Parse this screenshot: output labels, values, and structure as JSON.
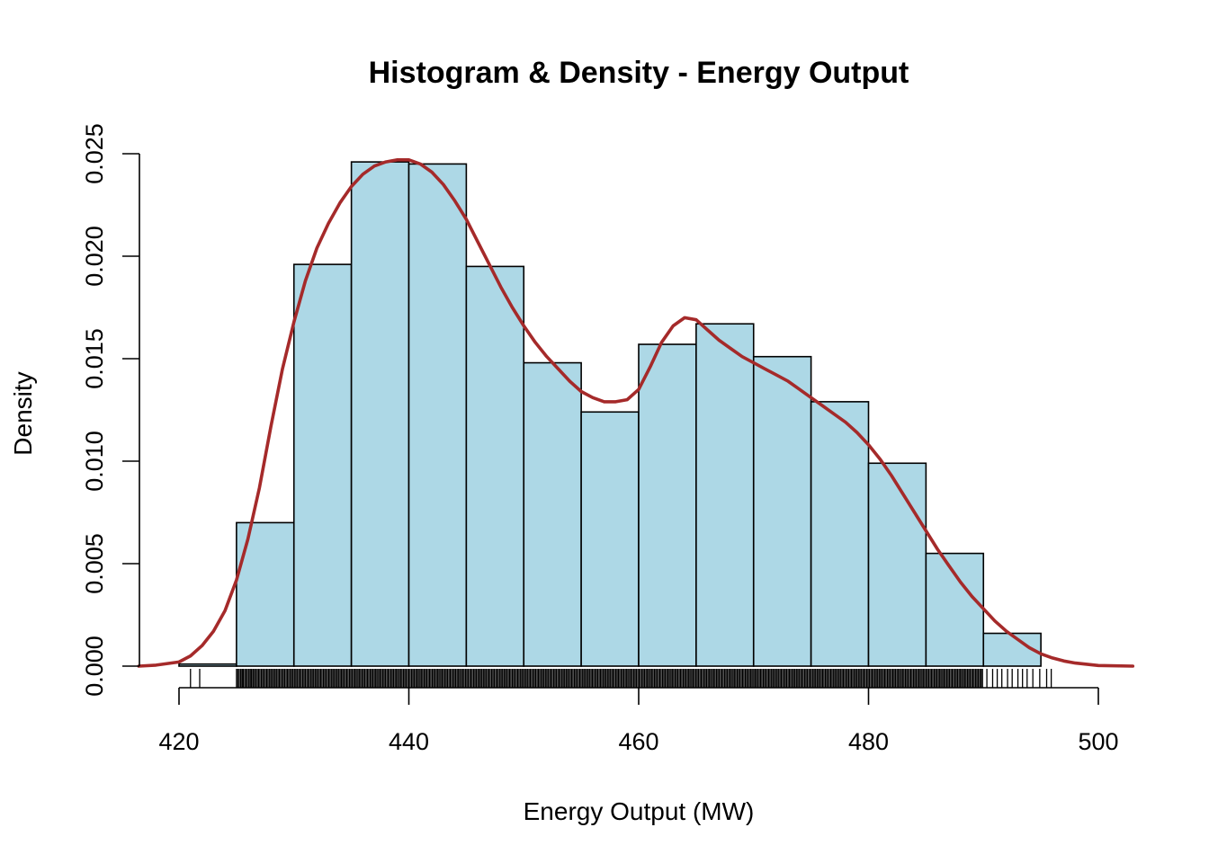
{
  "chart_data": {
    "type": "bar",
    "title": "Histogram & Density - Energy Output",
    "xlabel": "Energy Output (MW)",
    "ylabel": "Density",
    "xlim": [
      420,
      500
    ],
    "ylim": [
      0,
      0.025
    ],
    "x_ticks": [
      "420",
      "440",
      "460",
      "480",
      "500"
    ],
    "y_ticks": [
      "0.000",
      "0.005",
      "0.010",
      "0.015",
      "0.020",
      "0.025"
    ],
    "grid": false,
    "legend": "none",
    "bin_edges": [
      420,
      425,
      430,
      435,
      440,
      445,
      450,
      455,
      460,
      465,
      470,
      475,
      480,
      485,
      490,
      495,
      500
    ],
    "values": [
      0.0001,
      0.007,
      0.0196,
      0.0246,
      0.0245,
      0.0195,
      0.0148,
      0.0124,
      0.0157,
      0.0167,
      0.0151,
      0.0129,
      0.0099,
      0.0055,
      0.0016,
      0.0
    ],
    "density_curve": {
      "x": [
        416.5,
        418,
        420,
        421,
        422,
        423,
        424,
        425,
        426,
        427,
        428,
        429,
        430,
        431,
        432,
        433,
        434,
        435,
        436,
        437,
        438,
        439,
        440,
        441,
        442,
        443,
        444,
        445,
        446,
        447,
        448,
        449,
        450,
        451,
        452,
        453,
        454,
        455,
        456,
        457,
        458,
        459,
        460,
        461,
        462,
        463,
        464,
        465,
        466,
        467,
        468,
        469,
        470,
        471,
        472,
        473,
        474,
        475,
        476,
        477,
        478,
        479,
        480,
        481,
        482,
        483,
        484,
        485,
        486,
        487,
        488,
        489,
        490,
        491,
        492,
        493,
        494,
        495,
        496,
        497,
        498,
        500,
        503
      ],
      "y": [
        0.0,
        5e-05,
        0.0002,
        0.0005,
        0.001,
        0.0017,
        0.0027,
        0.0042,
        0.0062,
        0.0087,
        0.0117,
        0.0145,
        0.0168,
        0.0188,
        0.0204,
        0.0216,
        0.0226,
        0.0234,
        0.024,
        0.0244,
        0.0246,
        0.0247,
        0.0247,
        0.0245,
        0.0241,
        0.0235,
        0.0227,
        0.0218,
        0.0207,
        0.0196,
        0.0185,
        0.0175,
        0.0166,
        0.0158,
        0.0151,
        0.0145,
        0.0139,
        0.0134,
        0.0131,
        0.0129,
        0.0129,
        0.013,
        0.0135,
        0.0146,
        0.0158,
        0.0166,
        0.017,
        0.0169,
        0.0164,
        0.0159,
        0.0155,
        0.0151,
        0.0148,
        0.0145,
        0.0142,
        0.0139,
        0.0135,
        0.0131,
        0.0127,
        0.0123,
        0.0119,
        0.0114,
        0.0108,
        0.0101,
        0.0093,
        0.0084,
        0.0075,
        0.0066,
        0.0057,
        0.0049,
        0.0041,
        0.0034,
        0.0028,
        0.0022,
        0.0017,
        0.0013,
        0.0009,
        0.0006,
        0.0004,
        0.00025,
        0.00015,
        3e-05,
        0.0
      ]
    },
    "rug": {
      "dense_range": [
        425,
        490
      ],
      "sparse": [
        421,
        421.8,
        425.5,
        426.3,
        490.3,
        490.8,
        491.2,
        491.6,
        492.1,
        492.5,
        493.0,
        493.4,
        493.8,
        494.3,
        494.9,
        495.5,
        495.9
      ]
    },
    "colors": {
      "bar_fill": "#ADD8E6",
      "bar_edge": "#000000",
      "density_line": "#A52A2A"
    }
  }
}
